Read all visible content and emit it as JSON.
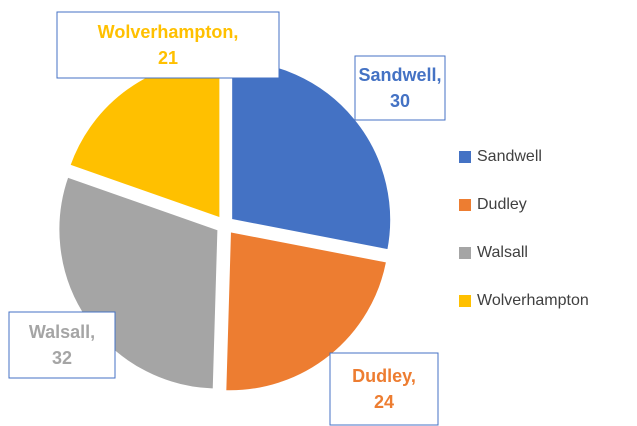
{
  "chart_data": {
    "type": "pie",
    "categories": [
      "Sandwell",
      "Dudley",
      "Walsall",
      "Wolverhampton"
    ],
    "values": [
      30,
      24,
      32,
      21
    ],
    "value_labels": [
      "Sandwell, 30",
      "Dudley, 24",
      "Walsall, 32",
      "Wolverhampton, 21"
    ],
    "colors": [
      "#4472c4",
      "#ed7d31",
      "#a5a5a5",
      "#ffc000"
    ],
    "legend": "right"
  }
}
